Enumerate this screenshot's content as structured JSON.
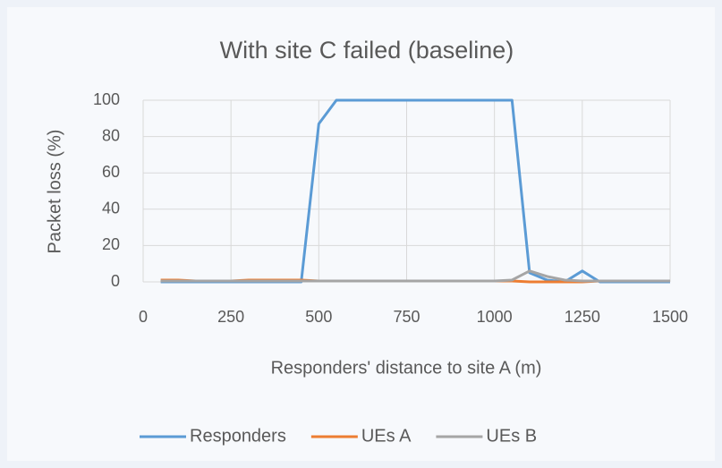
{
  "chart_data": {
    "type": "line",
    "title": "With site C failed (baseline)",
    "x_label": "Responders' distance to site A (m)",
    "y_label": "Packet loss (%)",
    "x": [
      50,
      100,
      150,
      200,
      250,
      300,
      350,
      400,
      450,
      500,
      550,
      600,
      650,
      700,
      750,
      800,
      850,
      900,
      950,
      1000,
      1050,
      1100,
      1150,
      1200,
      1250,
      1300,
      1350,
      1400,
      1450,
      1500
    ],
    "series": [
      {
        "name": "Responders",
        "color": "#5b9bd5",
        "values": [
          0,
          0,
          0,
          0,
          0,
          0,
          0,
          0,
          0,
          87,
          100,
          100,
          100,
          100,
          100,
          100,
          100,
          100,
          100,
          100,
          100,
          5,
          1,
          0,
          6,
          0,
          0,
          0,
          0,
          0
        ]
      },
      {
        "name": "UEs A",
        "color": "#ed7d31",
        "values": [
          1,
          1,
          0.5,
          0.5,
          0.5,
          1,
          1,
          1,
          1,
          0.5,
          0.5,
          0.5,
          0.5,
          0.5,
          0.5,
          0.5,
          0.5,
          0.5,
          0.5,
          0.5,
          0.5,
          0,
          0,
          0,
          0,
          0.5,
          0.5,
          0.5,
          0.5,
          0.5
        ]
      },
      {
        "name": "UEs B",
        "color": "#a5a5a5",
        "values": [
          0.5,
          0.5,
          0.5,
          0.5,
          0.5,
          0.5,
          0.5,
          0.5,
          0.5,
          0.5,
          0.5,
          0.5,
          0.5,
          0.5,
          0.5,
          0.5,
          0.5,
          0.5,
          0.5,
          0.5,
          1,
          6,
          3,
          1,
          0.5,
          0.5,
          0.5,
          0.5,
          0.5,
          0.5
        ]
      }
    ],
    "xlim": [
      0,
      1500
    ],
    "xticks": [
      0,
      250,
      500,
      750,
      1000,
      1250,
      1500
    ],
    "ylim": [
      0,
      100
    ],
    "yticks": [
      0,
      20,
      40,
      60,
      80,
      100
    ],
    "grid": true,
    "legend": "bottom"
  }
}
